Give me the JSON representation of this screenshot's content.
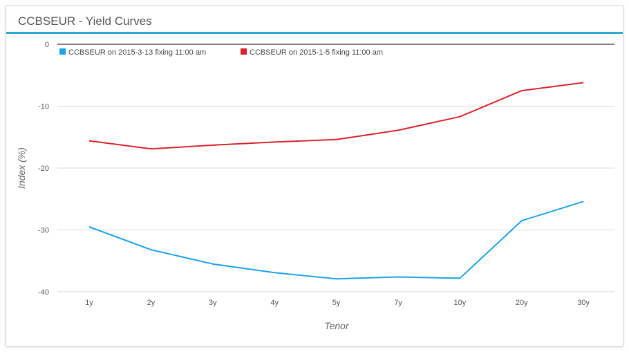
{
  "title": "CCBSEUR - Yield Curves",
  "chart_data": {
    "type": "line",
    "categories": [
      "1y",
      "2y",
      "3y",
      "4y",
      "5y",
      "7y",
      "10y",
      "20y",
      "30y"
    ],
    "series": [
      {
        "name": "CCBSEUR on 2015-3-13 fixing 11:00 am",
        "color": "#1aa3e8",
        "values": [
          -29.5,
          -33.2,
          -35.5,
          -36.9,
          -37.9,
          -37.6,
          -37.8,
          -28.5,
          -25.4
        ]
      },
      {
        "name": "CCBSEUR on 2015-1-5 fixing 11:00 am",
        "color": "#d9232a",
        "values": [
          -15.6,
          -16.9,
          -16.3,
          -15.8,
          -15.4,
          -13.9,
          -11.7,
          -7.5,
          -6.2
        ]
      }
    ],
    "xlabel": "Tenor",
    "ylabel": "Index (%)",
    "ylim": [
      -40,
      0
    ],
    "yticks": [
      0,
      -10,
      -20,
      -30,
      -40
    ],
    "grid": true,
    "legend": "top-left"
  }
}
